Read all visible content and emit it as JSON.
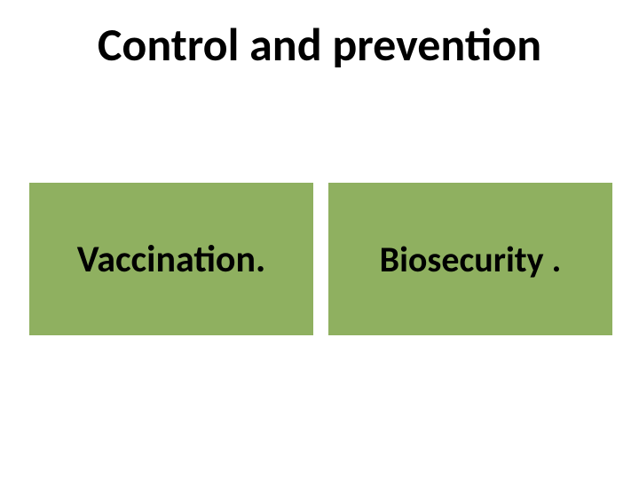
{
  "slide": {
    "title": "Control and prevention",
    "title_fontsize": 52,
    "title_color": "#000000",
    "background_color": "#ffffff",
    "boxes": [
      {
        "label": "Vaccination.",
        "fontsize": 42,
        "bg_color": "#8fb060",
        "text_color": "#000000"
      },
      {
        "label": "Biosecurity .",
        "fontsize": 40,
        "bg_color": "#8fb060",
        "text_color": "#000000"
      }
    ]
  }
}
